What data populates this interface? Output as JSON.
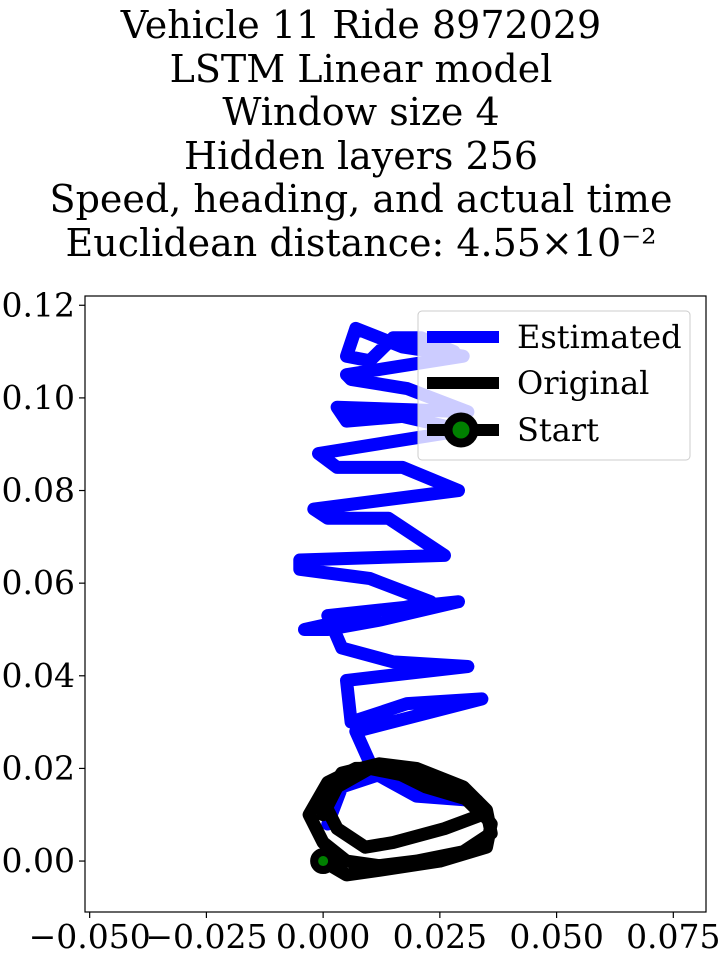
{
  "chart_data": {
    "type": "line",
    "title_lines": [
      "Vehicle 11 Ride 8972029",
      "LSTM Linear model",
      "Window size 4",
      "Hidden layers 256",
      "Speed, heading, and actual time",
      "Euclidean distance: 4.55×10⁻²"
    ],
    "xlabel": "",
    "ylabel": "",
    "xlim": [
      -0.051,
      0.082
    ],
    "ylim": [
      -0.011,
      0.122
    ],
    "x_ticks": [
      -0.05,
      -0.025,
      0.0,
      0.025,
      0.05,
      0.075
    ],
    "x_tick_labels": [
      "−0.050",
      "−0.025",
      "0.000",
      "0.025",
      "0.050",
      "0.075"
    ],
    "y_ticks": [
      0.0,
      0.02,
      0.04,
      0.06,
      0.08,
      0.1,
      0.12
    ],
    "y_tick_labels": [
      "0.00",
      "0.02",
      "0.04",
      "0.06",
      "0.08",
      "0.10",
      "0.12"
    ],
    "grid": false,
    "legend_position": "upper-right",
    "series": [
      {
        "name": "Estimated",
        "color": "#0000ff",
        "x": [
          0.001,
          0.004,
          0.016,
          0.025,
          0.033,
          0.02,
          0.011,
          0.007,
          0.034,
          0.018,
          0.006,
          0.005,
          0.031,
          0.015,
          0.004,
          0.001,
          0.029,
          0.012,
          0.001,
          -0.004,
          0.023,
          0.01,
          -0.005,
          -0.005,
          0.026,
          0.014,
          0.001,
          -0.002,
          0.029,
          0.017,
          0.003,
          -0.001,
          0.03,
          0.017,
          0.005,
          0.003,
          0.031,
          0.018,
          0.006,
          0.005,
          0.03,
          0.017,
          0.007,
          0.005,
          0.01,
          0.015,
          0.021,
          0.028
        ],
        "y": [
          0.008,
          0.016,
          0.02,
          0.017,
          0.013,
          0.014,
          0.019,
          0.028,
          0.035,
          0.034,
          0.03,
          0.039,
          0.042,
          0.043,
          0.046,
          0.053,
          0.056,
          0.052,
          0.05,
          0.05,
          0.056,
          0.061,
          0.063,
          0.065,
          0.066,
          0.074,
          0.074,
          0.076,
          0.08,
          0.085,
          0.085,
          0.088,
          0.093,
          0.096,
          0.095,
          0.098,
          0.097,
          0.102,
          0.104,
          0.105,
          0.109,
          0.111,
          0.115,
          0.109,
          0.108,
          0.113,
          0.113,
          0.11
        ]
      },
      {
        "name": "Original",
        "color": "#000000",
        "x": [
          0.0,
          0.005,
          0.012,
          0.025,
          0.035,
          0.036,
          0.032,
          0.022,
          0.014,
          0.007,
          0.001,
          -0.003,
          0.0,
          0.005,
          0.012,
          0.02,
          0.03,
          0.036,
          0.035,
          0.03,
          0.02,
          0.012,
          0.004,
          0.0,
          0.003,
          0.009,
          0.015,
          0.026,
          0.034,
          0.03,
          0.02,
          0.01,
          0.003,
          0.0
        ],
        "y": [
          0.0,
          -0.003,
          -0.002,
          0.0,
          0.003,
          0.008,
          0.013,
          0.016,
          0.02,
          0.02,
          0.017,
          0.01,
          0.004,
          0.0,
          -0.001,
          0.0,
          0.002,
          0.006,
          0.011,
          0.016,
          0.02,
          0.021,
          0.019,
          0.013,
          0.007,
          0.003,
          0.004,
          0.007,
          0.01,
          0.014,
          0.018,
          0.02,
          0.016,
          0.01
        ]
      },
      {
        "name": "Start",
        "color": "#000000",
        "marker_face_color": "#008000",
        "x": [
          0.0
        ],
        "y": [
          0.0
        ]
      }
    ]
  }
}
